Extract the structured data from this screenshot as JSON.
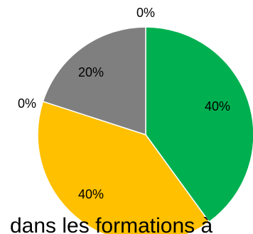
{
  "chart_data": {
    "type": "pie",
    "title": "",
    "start_angle_deg": 0,
    "direction": "clockwise",
    "slices": [
      {
        "value": 40,
        "label": "40%",
        "color": "#00b050"
      },
      {
        "value": 0,
        "label": "0%",
        "color": "#0070c0"
      },
      {
        "value": 40,
        "label": "40%",
        "color": "#ffc000"
      },
      {
        "value": 0,
        "label": "0%",
        "color": "#4472c4"
      },
      {
        "value": 20,
        "label": "20%",
        "color": "#7f7f7f"
      },
      {
        "value": 0,
        "label": "0%",
        "color": "#ed7d31"
      }
    ]
  },
  "caption": {
    "text": "dans les formations à"
  }
}
